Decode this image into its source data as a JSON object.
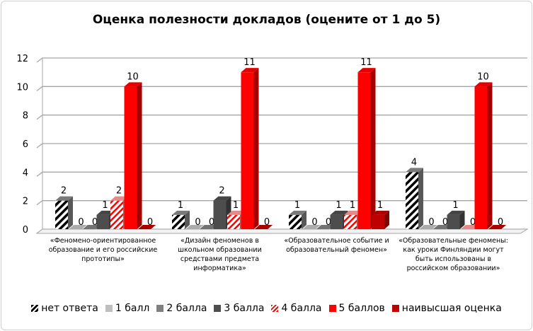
{
  "chart_data": {
    "type": "bar",
    "style": "3d-clustered-column",
    "title": "Оценка полезности докладов (оцените от 1 до 5)",
    "ylim": [
      0,
      12
    ],
    "yticks": [
      0,
      2,
      4,
      6,
      8,
      10,
      12
    ],
    "grid": true,
    "legend_position": "bottom",
    "categories": [
      "«Феномено-ориентированное образование и его российские прототипы»",
      "«Дизайн феноменов в школьном образовании средствами предмета информатика»",
      "«Образовательное событие и образовательный феномен»",
      "«Образовательные феномены: как уроки Финляндии могут быть использованы в российском образовании»"
    ],
    "series": [
      {
        "name": "нет ответа",
        "values": [
          2,
          1,
          1,
          4
        ],
        "color": "#000000",
        "pattern": "black-white-diagonal-stripes"
      },
      {
        "name": "1 балл",
        "values": [
          0,
          0,
          0,
          0
        ],
        "color": "#bfbfbf"
      },
      {
        "name": "2 балла",
        "values": [
          0,
          0,
          0,
          0
        ],
        "color": "#808080"
      },
      {
        "name": "3 балла",
        "values": [
          1,
          2,
          1,
          1
        ],
        "color": "#4d4d4d"
      },
      {
        "name": "4 балла",
        "values": [
          2,
          1,
          1,
          0
        ],
        "color": "#ff0000",
        "pattern": "red-white-diagonal-stripes"
      },
      {
        "name": "5 баллов",
        "values": [
          10,
          11,
          11,
          10
        ],
        "color": "#ff0000"
      },
      {
        "name": "наивысшая оценка",
        "values": [
          0,
          0,
          1,
          0
        ],
        "color": "#c00000"
      }
    ]
  }
}
